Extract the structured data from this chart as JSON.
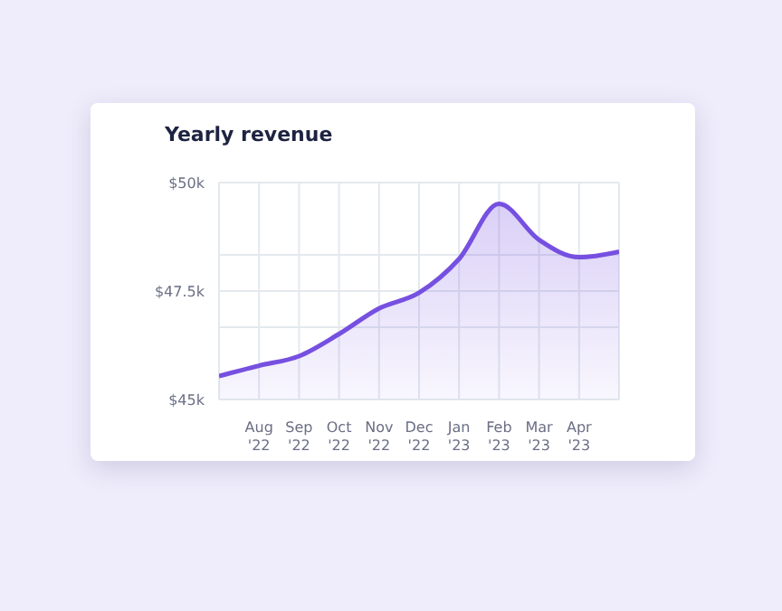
{
  "chart_data": {
    "type": "area",
    "title": "Yearly revenue",
    "categories": [
      null,
      "Aug '22",
      "Sep '22",
      "Oct '22",
      "Nov '22",
      "Dec '22",
      "Jan '23",
      "Feb '23",
      "Mar '23",
      "Apr '23",
      null
    ],
    "series": [
      {
        "color": "#7650e0",
        "values": [
          45.54,
          45.78,
          46.0,
          46.51,
          47.1,
          47.46,
          48.24,
          49.51,
          48.68,
          48.28,
          48.41
        ]
      }
    ],
    "ylim": [
      45,
      50
    ],
    "yticks": [
      {
        "value": 45,
        "label": "$45k"
      },
      {
        "value": 46.667,
        "label": null
      },
      {
        "value": 47.5,
        "label": "$47.5k"
      },
      {
        "value": 48.333,
        "label": null
      },
      {
        "value": 50,
        "label": "$50k"
      }
    ],
    "grid": true,
    "legend": false
  }
}
